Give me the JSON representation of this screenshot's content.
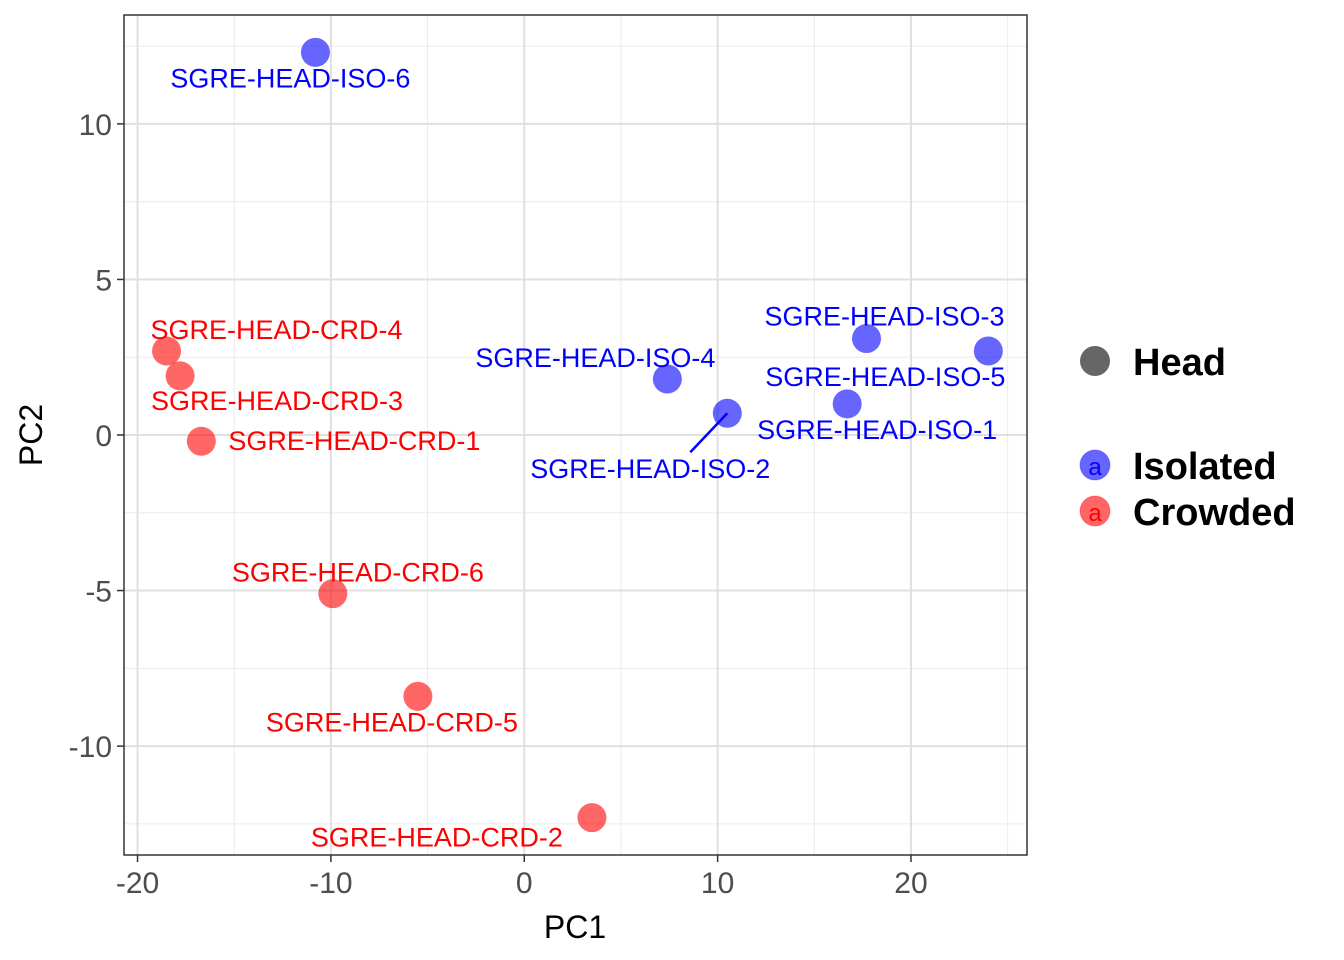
{
  "chart_data": {
    "type": "scatter",
    "title": "",
    "xlabel": "PC1",
    "ylabel": "PC2",
    "xlim": [
      -20.7,
      26.0
    ],
    "ylim": [
      -13.5,
      13.5
    ],
    "xticks": [
      -20,
      -10,
      0,
      10,
      20
    ],
    "yticks": [
      -10,
      -5,
      0,
      5,
      10
    ],
    "xtick_labels": [
      "-20",
      "-10",
      "0",
      "10",
      "20"
    ],
    "ytick_labels": [
      "-10",
      "-5",
      "0",
      "5",
      "10"
    ],
    "grid": true,
    "legend": {
      "placement": "right",
      "shape_title": "Head",
      "entries": [
        {
          "name": "Isolated",
          "color": "#0000ff",
          "key_glyph": "a"
        },
        {
          "name": "Crowded",
          "color": "#ff0000",
          "key_glyph": "a"
        }
      ]
    },
    "points": [
      {
        "label": "SGRE-HEAD-ISO-6",
        "group": "Isolated",
        "x": -10.8,
        "y": 12.3
      },
      {
        "label": "SGRE-HEAD-CRD-4",
        "group": "Crowded",
        "x": -18.5,
        "y": 2.7
      },
      {
        "label": "SGRE-HEAD-CRD-3",
        "group": "Crowded",
        "x": -17.8,
        "y": 1.9
      },
      {
        "label": "SGRE-HEAD-CRD-1",
        "group": "Crowded",
        "x": -16.7,
        "y": -0.2
      },
      {
        "label": "SGRE-HEAD-CRD-6",
        "group": "Crowded",
        "x": -9.9,
        "y": -5.1
      },
      {
        "label": "SGRE-HEAD-CRD-5",
        "group": "Crowded",
        "x": -5.5,
        "y": -8.4
      },
      {
        "label": "SGRE-HEAD-CRD-2",
        "group": "Crowded",
        "x": 3.5,
        "y": -12.3
      },
      {
        "label": "SGRE-HEAD-ISO-4",
        "group": "Isolated",
        "x": 7.4,
        "y": 1.8
      },
      {
        "label": "SGRE-HEAD-ISO-2",
        "group": "Isolated",
        "x": 10.5,
        "y": 0.7
      },
      {
        "label": "SGRE-HEAD-ISO-3",
        "group": "Isolated",
        "x": 17.7,
        "y": 3.1
      },
      {
        "label": "SGRE-HEAD-ISO-1",
        "group": "Isolated",
        "x": 16.7,
        "y": 1.0
      },
      {
        "label": "SGRE-HEAD-ISO-5",
        "group": "Isolated",
        "x": 24.0,
        "y": 2.7
      }
    ]
  }
}
